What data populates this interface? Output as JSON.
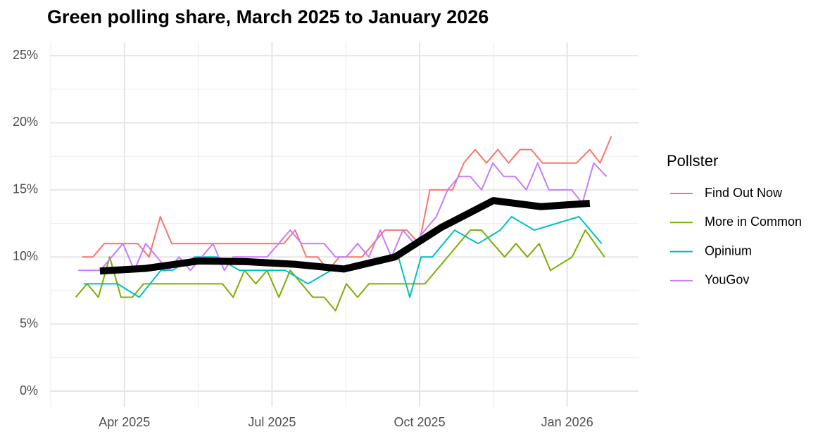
{
  "chart_data": {
    "type": "line",
    "title": "Green polling share, March 2025 to January 2026",
    "legend_title": "Pollster",
    "legend_position": "right",
    "grid": true,
    "xlim": [
      2.5,
      14.45
    ],
    "xticks": [
      {
        "value": 4,
        "label": "Apr 2025"
      },
      {
        "value": 7,
        "label": "Jul 2025"
      },
      {
        "value": 10,
        "label": "Oct 2025"
      },
      {
        "value": 13,
        "label": "Jan 2026"
      }
    ],
    "xminorticks": [
      2.5,
      5.5,
      8.5,
      11.5
    ],
    "ylim": [
      -1.15,
      26
    ],
    "yticks": [
      {
        "value": 0,
        "label": "0%"
      },
      {
        "value": 5,
        "label": "5%"
      },
      {
        "value": 10,
        "label": "10%"
      },
      {
        "value": 15,
        "label": "15%"
      },
      {
        "value": 20,
        "label": "20%"
      },
      {
        "value": 25,
        "label": "25%"
      }
    ],
    "yminorticks": [
      2.5,
      7.5,
      12.5,
      17.5,
      22.5
    ],
    "series": [
      {
        "name": "Find Out Now",
        "color": "#F8766D",
        "width": 2,
        "x": [
          3.14,
          3.36,
          3.59,
          3.8,
          4.03,
          4.27,
          4.5,
          4.73,
          4.96,
          5.19,
          5.41,
          5.64,
          5.87,
          6.1,
          6.33,
          6.56,
          6.79,
          7.01,
          7.24,
          7.47,
          7.7,
          7.93,
          8.14,
          8.37,
          8.6,
          8.83,
          9.06,
          9.29,
          9.51,
          9.74,
          9.99,
          10.21,
          10.44,
          10.67,
          10.9,
          11.13,
          11.36,
          11.59,
          11.81,
          12.04,
          12.27,
          12.5,
          12.73,
          12.96,
          13.19,
          13.46,
          13.67,
          13.9
        ],
        "values": [
          10,
          10,
          11,
          11,
          11,
          11,
          10,
          13,
          11,
          11,
          11,
          11,
          11,
          11,
          11,
          11,
          11,
          11,
          11,
          12,
          10,
          10,
          9,
          10,
          10,
          10,
          11,
          12,
          12,
          12,
          11,
          15,
          15,
          15,
          17,
          18,
          17,
          18,
          17,
          18,
          18,
          17,
          17,
          17,
          17,
          18,
          17,
          19
        ]
      },
      {
        "name": "More in Common",
        "color": "#7CAE00",
        "width": 2,
        "x": [
          3.01,
          3.24,
          3.47,
          3.7,
          3.93,
          4.16,
          4.39,
          4.61,
          4.84,
          5.07,
          5.3,
          5.53,
          5.76,
          5.99,
          6.21,
          6.44,
          6.67,
          6.9,
          7.14,
          7.37,
          7.6,
          7.83,
          8.06,
          8.29,
          8.51,
          8.74,
          8.97,
          9.2,
          9.43,
          9.66,
          10.11,
          11.03,
          11.26,
          11.49,
          11.73,
          11.96,
          12.19,
          12.43,
          12.66,
          13.1,
          13.37,
          13.76
        ],
        "values": [
          7,
          8,
          7,
          10,
          7,
          7,
          8,
          8,
          8,
          8,
          8,
          8,
          8,
          8,
          7,
          9,
          8,
          9,
          7,
          9,
          8,
          7,
          7,
          6,
          8,
          7,
          8,
          8,
          8,
          8,
          8,
          12,
          12,
          11,
          10,
          11,
          10,
          11,
          9,
          10,
          12,
          10
        ]
      },
      {
        "name": "Opinium",
        "color": "#00BFC4",
        "width": 2,
        "x": [
          3.17,
          3.63,
          3.86,
          4.3,
          4.74,
          4.97,
          5.43,
          5.87,
          6.34,
          6.8,
          7.27,
          7.73,
          8.2,
          9.57,
          9.8,
          10.03,
          10.26,
          10.71,
          11.19,
          11.64,
          11.87,
          12.33,
          13.24,
          13.7
        ],
        "values": [
          8,
          8,
          8,
          7,
          9,
          9,
          10,
          10,
          9,
          9,
          9,
          8,
          9,
          10,
          7,
          10,
          10,
          12,
          11,
          12,
          13,
          12,
          13,
          11
        ]
      },
      {
        "name": "YouGov",
        "color": "#C77CFF",
        "width": 2,
        "x": [
          3.06,
          3.29,
          3.51,
          3.74,
          3.97,
          4.2,
          4.43,
          4.66,
          4.89,
          5.11,
          5.34,
          5.57,
          5.8,
          6.03,
          6.21,
          6.44,
          6.67,
          6.9,
          7.37,
          7.6,
          7.83,
          8.06,
          8.29,
          8.51,
          8.74,
          8.97,
          9.2,
          9.31,
          9.43,
          9.66,
          9.89,
          10.11,
          10.34,
          10.57,
          10.8,
          11.03,
          11.26,
          11.49,
          11.71,
          11.94,
          12.17,
          12.4,
          12.63,
          12.86,
          13.09,
          13.31,
          13.54,
          13.8
        ],
        "values": [
          9,
          9,
          9,
          10,
          11,
          9,
          11,
          10,
          9,
          10,
          9,
          10,
          11,
          9,
          10,
          10,
          10,
          10,
          12,
          11,
          11,
          11,
          10,
          10,
          11,
          10,
          12,
          11,
          10,
          12,
          11,
          12,
          13,
          15,
          16,
          16,
          15,
          17,
          16,
          16,
          15,
          17,
          15,
          15,
          15,
          14,
          17,
          16
        ]
      },
      {
        "color": "#000000",
        "width": 10,
        "x": [
          3.5,
          4.43,
          5.5,
          6.47,
          7.49,
          8.46,
          9.5,
          10.44,
          11.5,
          12.46,
          13.46
        ],
        "values": [
          8.95,
          9.15,
          9.7,
          9.65,
          9.45,
          9.1,
          10,
          12.2,
          14.2,
          13.75,
          14
        ]
      }
    ]
  }
}
